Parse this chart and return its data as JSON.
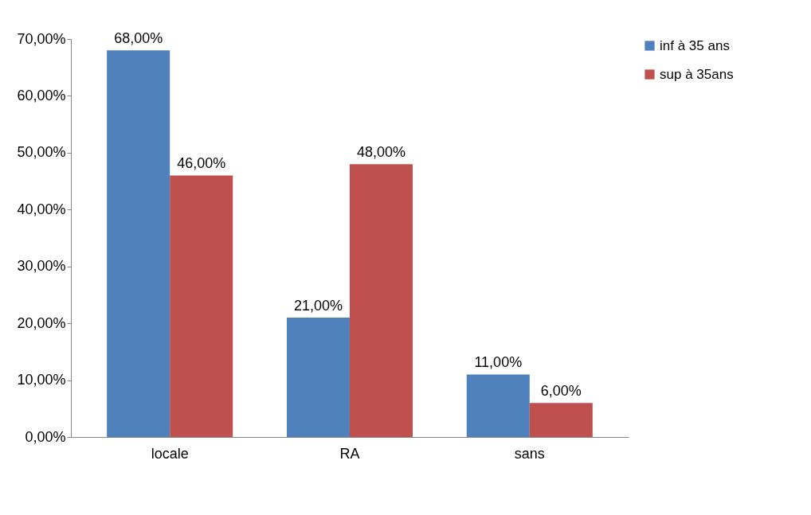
{
  "chart_data": {
    "type": "bar",
    "categories": [
      "locale",
      "RA",
      "sans"
    ],
    "series": [
      {
        "name": "inf à 35 ans",
        "color": "#4f81bd",
        "values": [
          68,
          21,
          11
        ],
        "value_labels": [
          "68,00%",
          "21,00%",
          "11,00%"
        ]
      },
      {
        "name": "sup à 35ans",
        "color": "#c0504d",
        "values": [
          46,
          48,
          6
        ],
        "value_labels": [
          "46,00%",
          "48,00%",
          "6,00%"
        ]
      }
    ],
    "ylim": [
      0,
      70
    ],
    "yticks": [
      {
        "value": 0,
        "label": "0,00%"
      },
      {
        "value": 10,
        "label": "10,00%"
      },
      {
        "value": 20,
        "label": "20,00%"
      },
      {
        "value": 30,
        "label": "30,00%"
      },
      {
        "value": 40,
        "label": "40,00%"
      },
      {
        "value": 50,
        "label": "50,00%"
      },
      {
        "value": 60,
        "label": "60,00%"
      },
      {
        "value": 70,
        "label": "70,00%"
      }
    ],
    "grid": false,
    "legend": "right"
  }
}
